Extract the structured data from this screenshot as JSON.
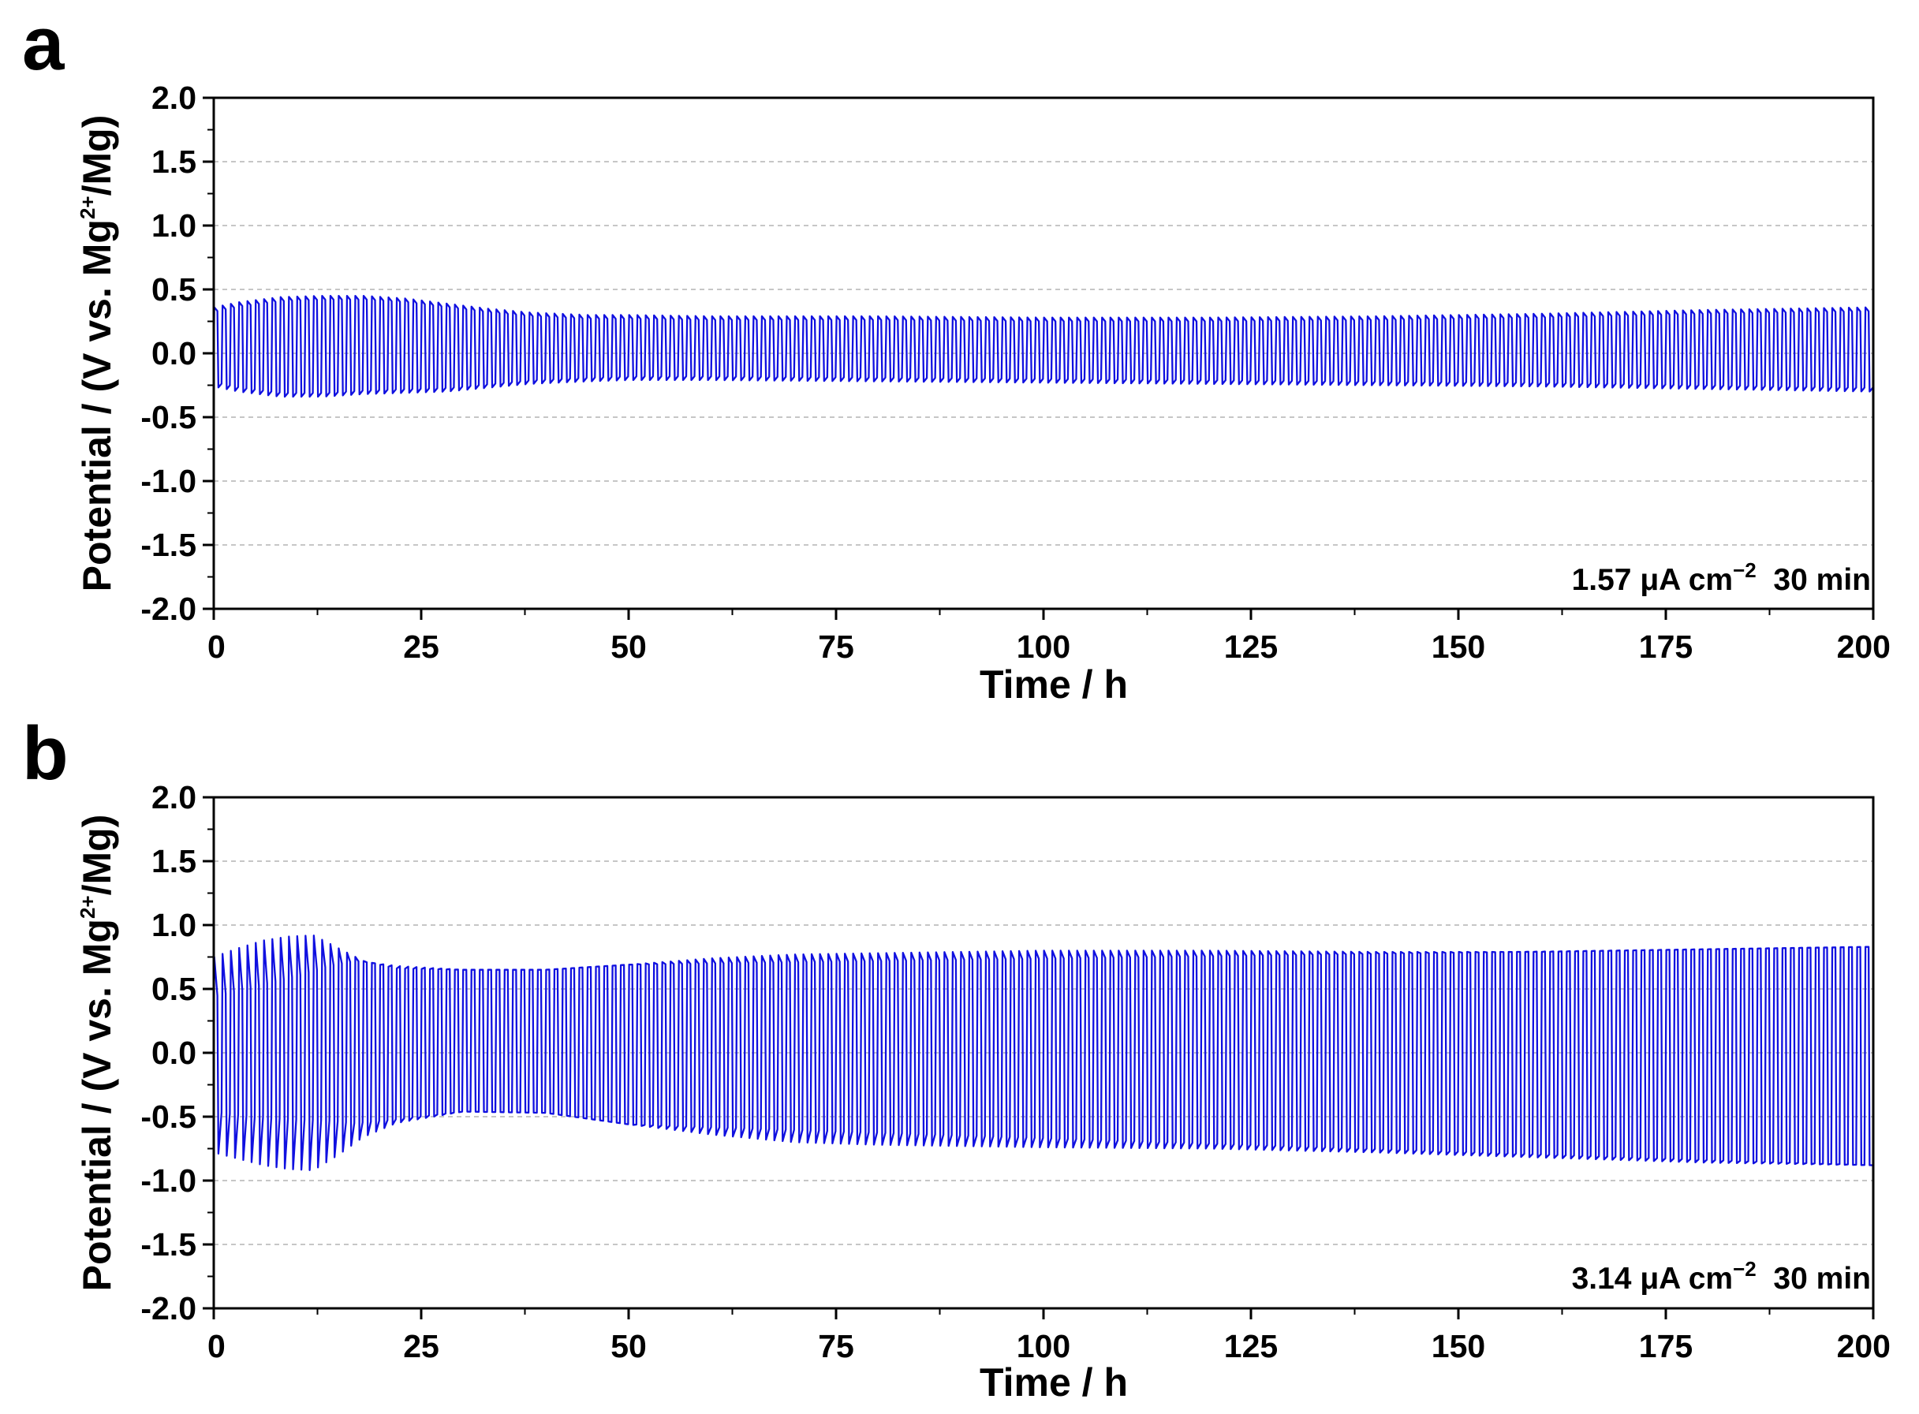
{
  "chart_data": [
    {
      "panel": "a",
      "type": "line",
      "xlabel": "Time / h",
      "ylabel": "Potential / (V vs. Mg2+/Mg)",
      "ylabel_parts": {
        "pre": "Potential / (V vs. Mg",
        "sup": "2+",
        "post": "/Mg)"
      },
      "xlim": [
        0,
        200
      ],
      "ylim": [
        -2.0,
        2.0
      ],
      "x_ticks": [
        0,
        25,
        50,
        75,
        100,
        125,
        150,
        175,
        200
      ],
      "y_ticks": [
        2.0,
        1.5,
        1.0,
        0.5,
        0.0,
        -0.5,
        -1.0,
        -1.5,
        -2.0
      ],
      "y_tick_labels": [
        "2.0",
        "1.5",
        "1.0",
        "0.5",
        "0.0",
        "-0.5",
        "-1.0",
        "-1.5",
        "-2.0"
      ],
      "grid": "horizontal dashed",
      "annotation": {
        "pre": "1.57 μA cm",
        "sup": "−2",
        "post": "  30 min"
      },
      "series": [
        {
          "color": "#1010e0",
          "cycle_period_h": 1.0,
          "upper_envelope": {
            "x": [
              0,
              3,
              8,
              13,
              18,
              23,
              28,
              33,
              38,
              45,
              50,
              60,
              80,
              100,
              120,
              140,
              160,
              180,
              200
            ],
            "y": [
              0.36,
              0.4,
              0.44,
              0.45,
              0.45,
              0.43,
              0.39,
              0.35,
              0.32,
              0.3,
              0.3,
              0.29,
              0.29,
              0.28,
              0.28,
              0.29,
              0.31,
              0.34,
              0.36
            ]
          },
          "lower_envelope": {
            "x": [
              0,
              3,
              8,
              13,
              18,
              23,
              28,
              33,
              38,
              45,
              50,
              60,
              80,
              100,
              120,
              140,
              160,
              180,
              200
            ],
            "y": [
              -0.26,
              -0.3,
              -0.34,
              -0.34,
              -0.32,
              -0.31,
              -0.3,
              -0.27,
              -0.24,
              -0.22,
              -0.21,
              -0.21,
              -0.22,
              -0.23,
              -0.24,
              -0.25,
              -0.26,
              -0.28,
              -0.3
            ]
          }
        }
      ]
    },
    {
      "panel": "b",
      "type": "line",
      "xlabel": "Time / h",
      "ylabel": "Potential / (V vs. Mg2+/Mg)",
      "ylabel_parts": {
        "pre": "Potential / (V vs. Mg",
        "sup": "2+",
        "post": "/Mg)"
      },
      "xlim": [
        0,
        200
      ],
      "ylim": [
        -2.0,
        2.0
      ],
      "x_ticks": [
        0,
        25,
        50,
        75,
        100,
        125,
        150,
        175,
        200
      ],
      "y_ticks": [
        2.0,
        1.5,
        1.0,
        0.5,
        0.0,
        -0.5,
        -1.0,
        -1.5,
        -2.0
      ],
      "y_tick_labels": [
        "2.0",
        "1.5",
        "1.0",
        "0.5",
        "0.0",
        "-0.5",
        "-1.0",
        "-1.5",
        "-2.0"
      ],
      "grid": "horizontal dashed",
      "annotation": {
        "pre": "3.14 μA cm",
        "sup": "−2",
        "post": "  30 min"
      },
      "series": [
        {
          "color": "#1010e0",
          "cycle_period_h": 1.0,
          "upper_envelope": {
            "x": [
              0,
              3,
              6,
              9,
              12,
              15,
              18,
              22,
              30,
              40,
              50,
              60,
              70,
              80,
              100,
              120,
              140,
              160,
              180,
              200
            ],
            "y": [
              0.75,
              0.82,
              0.88,
              0.91,
              0.92,
              0.82,
              0.72,
              0.66,
              0.65,
              0.65,
              0.69,
              0.74,
              0.77,
              0.78,
              0.8,
              0.8,
              0.79,
              0.79,
              0.81,
              0.83
            ]
          },
          "lower_envelope": {
            "x": [
              0,
              3,
              6,
              9,
              12,
              15,
              18,
              22,
              30,
              40,
              50,
              60,
              70,
              80,
              100,
              120,
              140,
              160,
              180,
              200
            ],
            "y": [
              -0.78,
              -0.83,
              -0.88,
              -0.91,
              -0.92,
              -0.8,
              -0.66,
              -0.55,
              -0.46,
              -0.47,
              -0.56,
              -0.64,
              -0.7,
              -0.72,
              -0.74,
              -0.75,
              -0.78,
              -0.82,
              -0.86,
              -0.88
            ]
          },
          "inner_high_envelope": {
            "x": [
              0,
              5,
              10,
              14,
              17,
              22,
              30,
              40,
              50,
              200
            ],
            "y": [
              0.44,
              0.52,
              0.6,
              0.68,
              0.72,
              0.68,
              0.65,
              0.65,
              0.69,
              0.83
            ]
          },
          "inner_low_envelope": {
            "x": [
              0,
              5,
              10,
              14,
              17,
              22,
              30,
              40,
              50,
              200
            ],
            "y": [
              -0.46,
              -0.5,
              -0.52,
              -0.53,
              -0.55,
              -0.52,
              -0.46,
              -0.47,
              -0.56,
              -0.88
            ]
          }
        }
      ]
    }
  ]
}
